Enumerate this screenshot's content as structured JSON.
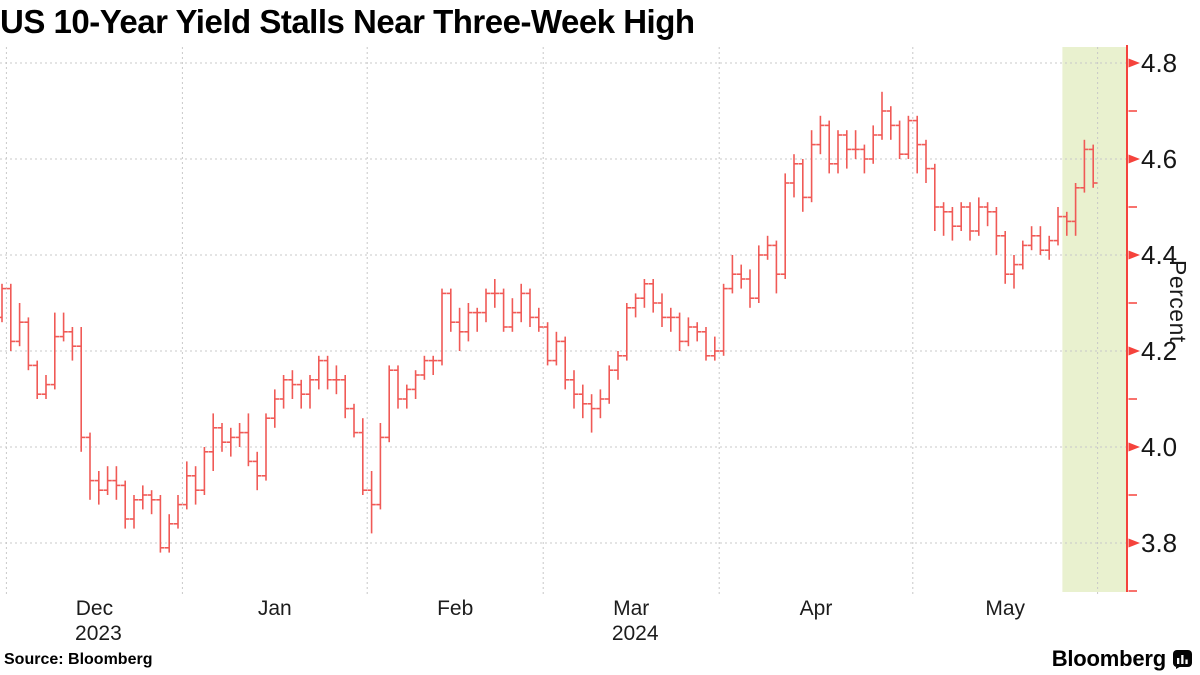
{
  "title": "US 10-Year Yield Stalls Near Three-Week High",
  "source": "Source: Bloomberg",
  "brand": "Bloomberg",
  "chart_data": {
    "type": "ohlc-bar",
    "title": "US 10-Year Yield Stalls Near Three-Week High",
    "xlabel": "",
    "ylabel": "Percent",
    "ylim": [
      3.69,
      4.84
    ],
    "yticks_major": [
      3.8,
      4.0,
      4.2,
      4.4,
      4.6,
      4.8
    ],
    "yticks_minor": [
      3.7,
      3.9,
      4.1,
      4.3,
      4.5,
      4.7
    ],
    "grid": true,
    "legend": "none",
    "months": [
      {
        "label": "Dec",
        "year": "2023"
      },
      {
        "label": "Jan"
      },
      {
        "label": "Feb"
      },
      {
        "label": "Mar",
        "year": "2024"
      },
      {
        "label": "Apr"
      },
      {
        "label": "May"
      }
    ],
    "colors": {
      "bar": "#f05a56",
      "axis": "#f5433c",
      "highlight": "#e9f1cf",
      "grid": "#c8c8c8",
      "text": "#161616"
    },
    "highlight": {
      "start_date": "2024-05-24",
      "color": "#e9f1cf"
    },
    "series_name": "US 10-Year Treasury Yield (%), daily OHLC",
    "series": [
      [
        "2023-11-30",
        4.27,
        4.34,
        4.26,
        4.33
      ],
      [
        "2023-12-01",
        4.33,
        4.34,
        4.2,
        4.22
      ],
      [
        "2023-12-04",
        4.22,
        4.3,
        4.21,
        4.26
      ],
      [
        "2023-12-05",
        4.26,
        4.27,
        4.16,
        4.17
      ],
      [
        "2023-12-06",
        4.17,
        4.18,
        4.1,
        4.11
      ],
      [
        "2023-12-07",
        4.11,
        4.15,
        4.1,
        4.13
      ],
      [
        "2023-12-08",
        4.13,
        4.28,
        4.12,
        4.23
      ],
      [
        "2023-12-11",
        4.23,
        4.28,
        4.22,
        4.24
      ],
      [
        "2023-12-12",
        4.24,
        4.25,
        4.18,
        4.21
      ],
      [
        "2023-12-13",
        4.21,
        4.25,
        3.99,
        4.02
      ],
      [
        "2023-12-14",
        4.02,
        4.03,
        3.89,
        3.93
      ],
      [
        "2023-12-15",
        3.93,
        3.95,
        3.88,
        3.91
      ],
      [
        "2023-12-18",
        3.91,
        3.96,
        3.9,
        3.93
      ],
      [
        "2023-12-19",
        3.93,
        3.96,
        3.89,
        3.92
      ],
      [
        "2023-12-20",
        3.92,
        3.93,
        3.83,
        3.85
      ],
      [
        "2023-12-21",
        3.85,
        3.9,
        3.83,
        3.89
      ],
      [
        "2023-12-22",
        3.89,
        3.92,
        3.87,
        3.9
      ],
      [
        "2023-12-26",
        3.9,
        3.91,
        3.86,
        3.89
      ],
      [
        "2023-12-27",
        3.89,
        3.9,
        3.78,
        3.79
      ],
      [
        "2023-12-28",
        3.79,
        3.86,
        3.78,
        3.84
      ],
      [
        "2023-12-29",
        3.84,
        3.9,
        3.83,
        3.88
      ],
      [
        "2024-01-02",
        3.88,
        3.97,
        3.87,
        3.94
      ],
      [
        "2024-01-03",
        3.94,
        3.96,
        3.88,
        3.91
      ],
      [
        "2024-01-04",
        3.91,
        4.0,
        3.9,
        3.99
      ],
      [
        "2024-01-05",
        3.99,
        4.07,
        3.95,
        4.04
      ],
      [
        "2024-01-08",
        4.04,
        4.05,
        3.99,
        4.01
      ],
      [
        "2024-01-09",
        4.01,
        4.04,
        3.98,
        4.02
      ],
      [
        "2024-01-10",
        4.02,
        4.05,
        4.0,
        4.03
      ],
      [
        "2024-01-11",
        4.03,
        4.07,
        3.96,
        3.97
      ],
      [
        "2024-01-12",
        3.97,
        3.99,
        3.91,
        3.94
      ],
      [
        "2024-01-16",
        3.94,
        4.07,
        3.93,
        4.06
      ],
      [
        "2024-01-17",
        4.06,
        4.12,
        4.04,
        4.1
      ],
      [
        "2024-01-18",
        4.1,
        4.15,
        4.08,
        4.14
      ],
      [
        "2024-01-19",
        4.14,
        4.16,
        4.1,
        4.13
      ],
      [
        "2024-01-22",
        4.13,
        4.14,
        4.08,
        4.11
      ],
      [
        "2024-01-23",
        4.11,
        4.15,
        4.08,
        4.14
      ],
      [
        "2024-01-24",
        4.14,
        4.19,
        4.12,
        4.18
      ],
      [
        "2024-01-25",
        4.18,
        4.19,
        4.12,
        4.14
      ],
      [
        "2024-01-26",
        4.14,
        4.17,
        4.11,
        4.14
      ],
      [
        "2024-01-29",
        4.14,
        4.15,
        4.06,
        4.08
      ],
      [
        "2024-01-30",
        4.08,
        4.09,
        4.02,
        4.03
      ],
      [
        "2024-01-31",
        4.03,
        4.06,
        3.9,
        3.91
      ],
      [
        "2024-02-01",
        3.91,
        3.95,
        3.82,
        3.88
      ],
      [
        "2024-02-02",
        3.88,
        4.05,
        3.87,
        4.02
      ],
      [
        "2024-02-05",
        4.02,
        4.17,
        4.01,
        4.16
      ],
      [
        "2024-02-06",
        4.16,
        4.17,
        4.08,
        4.1
      ],
      [
        "2024-02-07",
        4.1,
        4.13,
        4.08,
        4.12
      ],
      [
        "2024-02-08",
        4.12,
        4.16,
        4.1,
        4.15
      ],
      [
        "2024-02-09",
        4.15,
        4.19,
        4.14,
        4.18
      ],
      [
        "2024-02-12",
        4.18,
        4.19,
        4.15,
        4.18
      ],
      [
        "2024-02-13",
        4.18,
        4.33,
        4.17,
        4.32
      ],
      [
        "2024-02-14",
        4.32,
        4.33,
        4.24,
        4.26
      ],
      [
        "2024-02-15",
        4.26,
        4.29,
        4.2,
        4.24
      ],
      [
        "2024-02-16",
        4.24,
        4.3,
        4.22,
        4.28
      ],
      [
        "2024-02-20",
        4.28,
        4.29,
        4.24,
        4.28
      ],
      [
        "2024-02-21",
        4.28,
        4.33,
        4.26,
        4.32
      ],
      [
        "2024-02-22",
        4.32,
        4.35,
        4.29,
        4.32
      ],
      [
        "2024-02-23",
        4.32,
        4.33,
        4.24,
        4.25
      ],
      [
        "2024-02-26",
        4.25,
        4.31,
        4.24,
        4.28
      ],
      [
        "2024-02-27",
        4.28,
        4.34,
        4.26,
        4.32
      ],
      [
        "2024-02-28",
        4.32,
        4.33,
        4.25,
        4.27
      ],
      [
        "2024-02-29",
        4.27,
        4.29,
        4.24,
        4.25
      ],
      [
        "2024-03-01",
        4.25,
        4.26,
        4.17,
        4.18
      ],
      [
        "2024-03-04",
        4.18,
        4.24,
        4.17,
        4.22
      ],
      [
        "2024-03-05",
        4.22,
        4.23,
        4.12,
        4.14
      ],
      [
        "2024-03-06",
        4.14,
        4.16,
        4.08,
        4.11
      ],
      [
        "2024-03-07",
        4.11,
        4.13,
        4.06,
        4.09
      ],
      [
        "2024-03-08",
        4.09,
        4.11,
        4.03,
        4.08
      ],
      [
        "2024-03-11",
        4.08,
        4.12,
        4.06,
        4.1
      ],
      [
        "2024-03-12",
        4.1,
        4.17,
        4.09,
        4.16
      ],
      [
        "2024-03-13",
        4.16,
        4.2,
        4.14,
        4.19
      ],
      [
        "2024-03-14",
        4.19,
        4.3,
        4.18,
        4.29
      ],
      [
        "2024-03-15",
        4.29,
        4.32,
        4.27,
        4.31
      ],
      [
        "2024-03-18",
        4.31,
        4.35,
        4.29,
        4.34
      ],
      [
        "2024-03-19",
        4.34,
        4.35,
        4.28,
        4.3
      ],
      [
        "2024-03-20",
        4.3,
        4.32,
        4.25,
        4.27
      ],
      [
        "2024-03-21",
        4.27,
        4.29,
        4.24,
        4.27
      ],
      [
        "2024-03-22",
        4.27,
        4.28,
        4.2,
        4.22
      ],
      [
        "2024-03-25",
        4.22,
        4.27,
        4.21,
        4.25
      ],
      [
        "2024-03-26",
        4.25,
        4.26,
        4.22,
        4.24
      ],
      [
        "2024-03-27",
        4.24,
        4.25,
        4.18,
        4.19
      ],
      [
        "2024-03-28",
        4.19,
        4.23,
        4.18,
        4.2
      ],
      [
        "2024-04-01",
        4.2,
        4.34,
        4.19,
        4.33
      ],
      [
        "2024-04-02",
        4.33,
        4.4,
        4.32,
        4.36
      ],
      [
        "2024-04-03",
        4.36,
        4.38,
        4.33,
        4.35
      ],
      [
        "2024-04-04",
        4.35,
        4.37,
        4.29,
        4.31
      ],
      [
        "2024-04-05",
        4.31,
        4.42,
        4.3,
        4.4
      ],
      [
        "2024-04-08",
        4.4,
        4.44,
        4.39,
        4.42
      ],
      [
        "2024-04-09",
        4.42,
        4.43,
        4.32,
        4.36
      ],
      [
        "2024-04-10",
        4.36,
        4.57,
        4.35,
        4.55
      ],
      [
        "2024-04-11",
        4.55,
        4.61,
        4.52,
        4.59
      ],
      [
        "2024-04-12",
        4.59,
        4.6,
        4.49,
        4.52
      ],
      [
        "2024-04-15",
        4.52,
        4.66,
        4.51,
        4.63
      ],
      [
        "2024-04-16",
        4.63,
        4.69,
        4.61,
        4.67
      ],
      [
        "2024-04-17",
        4.67,
        4.68,
        4.57,
        4.59
      ],
      [
        "2024-04-18",
        4.59,
        4.66,
        4.57,
        4.65
      ],
      [
        "2024-04-19",
        4.65,
        4.66,
        4.58,
        4.62
      ],
      [
        "2024-04-22",
        4.62,
        4.66,
        4.6,
        4.62
      ],
      [
        "2024-04-23",
        4.62,
        4.63,
        4.57,
        4.6
      ],
      [
        "2024-04-24",
        4.6,
        4.67,
        4.59,
        4.65
      ],
      [
        "2024-04-25",
        4.65,
        4.74,
        4.64,
        4.7
      ],
      [
        "2024-04-26",
        4.7,
        4.71,
        4.64,
        4.67
      ],
      [
        "2024-04-29",
        4.67,
        4.68,
        4.6,
        4.61
      ],
      [
        "2024-04-30",
        4.61,
        4.69,
        4.6,
        4.68
      ],
      [
        "2024-05-01",
        4.68,
        4.69,
        4.57,
        4.63
      ],
      [
        "2024-05-02",
        4.63,
        4.64,
        4.55,
        4.58
      ],
      [
        "2024-05-03",
        4.58,
        4.59,
        4.45,
        4.5
      ],
      [
        "2024-05-06",
        4.5,
        4.51,
        4.44,
        4.49
      ],
      [
        "2024-05-07",
        4.49,
        4.5,
        4.43,
        4.46
      ],
      [
        "2024-05-08",
        4.46,
        4.51,
        4.45,
        4.5
      ],
      [
        "2024-05-09",
        4.5,
        4.51,
        4.43,
        4.45
      ],
      [
        "2024-05-10",
        4.45,
        4.52,
        4.44,
        4.5
      ],
      [
        "2024-05-13",
        4.5,
        4.51,
        4.46,
        4.49
      ],
      [
        "2024-05-14",
        4.49,
        4.5,
        4.4,
        4.44
      ],
      [
        "2024-05-15",
        4.44,
        4.45,
        4.34,
        4.36
      ],
      [
        "2024-05-16",
        4.36,
        4.4,
        4.33,
        4.38
      ],
      [
        "2024-05-17",
        4.38,
        4.43,
        4.37,
        4.42
      ],
      [
        "2024-05-20",
        4.42,
        4.46,
        4.41,
        4.44
      ],
      [
        "2024-05-21",
        4.44,
        4.46,
        4.4,
        4.41
      ],
      [
        "2024-05-22",
        4.41,
        4.44,
        4.39,
        4.43
      ],
      [
        "2024-05-23",
        4.43,
        4.5,
        4.42,
        4.48
      ],
      [
        "2024-05-24",
        4.48,
        4.49,
        4.44,
        4.47
      ],
      [
        "2024-05-28",
        4.47,
        4.55,
        4.44,
        4.54
      ],
      [
        "2024-05-29",
        4.54,
        4.64,
        4.53,
        4.62
      ],
      [
        "2024-05-30",
        4.62,
        4.63,
        4.54,
        4.55
      ]
    ]
  }
}
